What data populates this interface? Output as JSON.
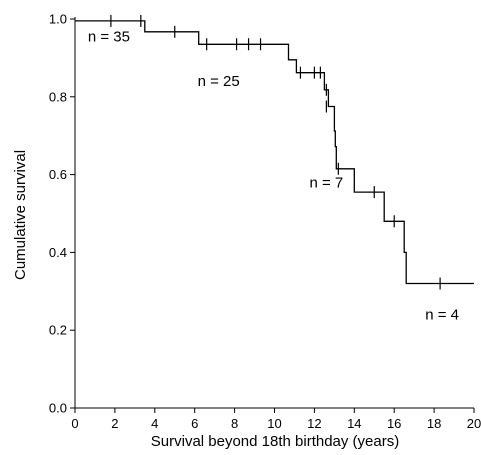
{
  "chart_data": {
    "type": "line",
    "title": "",
    "xlabel": "Survival beyond 18th birthday (years)",
    "ylabel": "Cumulative survival",
    "xlim": [
      0,
      20
    ],
    "ylim": [
      0,
      1.0
    ],
    "x_ticks": [
      0,
      2,
      4,
      6,
      8,
      10,
      12,
      14,
      16,
      18,
      20
    ],
    "y_ticks": [
      0.0,
      0.2,
      0.4,
      0.6,
      0.8,
      1.0
    ],
    "x_tick_labels": [
      "0",
      "2",
      "4",
      "6",
      "8",
      "10",
      "12",
      "14",
      "16",
      "18",
      "20"
    ],
    "y_tick_labels": [
      "0.0",
      "0.2",
      "0.4",
      "0.6",
      "0.8",
      "1.0"
    ],
    "grid": false,
    "series": [
      {
        "step_points": [
          [
            0,
            0.995
          ],
          [
            3.5,
            0.995
          ],
          [
            3.5,
            0.967
          ],
          [
            6.2,
            0.967
          ],
          [
            6.2,
            0.935
          ],
          [
            10.7,
            0.935
          ],
          [
            10.7,
            0.895
          ],
          [
            11.1,
            0.895
          ],
          [
            11.1,
            0.862
          ],
          [
            12.5,
            0.862
          ],
          [
            12.5,
            0.818
          ],
          [
            12.7,
            0.818
          ],
          [
            12.7,
            0.775
          ],
          [
            13.0,
            0.775
          ],
          [
            13.0,
            0.712
          ],
          [
            13.05,
            0.712
          ],
          [
            13.05,
            0.672
          ],
          [
            13.1,
            0.672
          ],
          [
            13.1,
            0.615
          ],
          [
            14.0,
            0.615
          ],
          [
            14.0,
            0.555
          ],
          [
            15.5,
            0.555
          ],
          [
            15.5,
            0.48
          ],
          [
            16.5,
            0.48
          ],
          [
            16.5,
            0.4
          ],
          [
            16.6,
            0.4
          ],
          [
            16.6,
            0.32
          ],
          [
            20,
            0.32
          ]
        ],
        "censored": [
          [
            1.8,
            0.995
          ],
          [
            3.3,
            0.995
          ],
          [
            5.0,
            0.967
          ],
          [
            6.6,
            0.935
          ],
          [
            8.1,
            0.935
          ],
          [
            8.7,
            0.935
          ],
          [
            9.3,
            0.935
          ],
          [
            11.3,
            0.862
          ],
          [
            12.0,
            0.862
          ],
          [
            12.3,
            0.862
          ],
          [
            12.6,
            0.818
          ],
          [
            12.6,
            0.775
          ],
          [
            13.2,
            0.615
          ],
          [
            15.0,
            0.555
          ],
          [
            16.0,
            0.48
          ],
          [
            18.3,
            0.32
          ]
        ]
      }
    ],
    "annotations": [
      {
        "text": "n = 35",
        "x": 1.7,
        "y": 0.955
      },
      {
        "text": "n = 25",
        "x": 7.2,
        "y": 0.84
      },
      {
        "text": "n = 7",
        "x": 12.6,
        "y": 0.58
      },
      {
        "text": "n = 4",
        "x": 18.4,
        "y": 0.24
      }
    ]
  }
}
